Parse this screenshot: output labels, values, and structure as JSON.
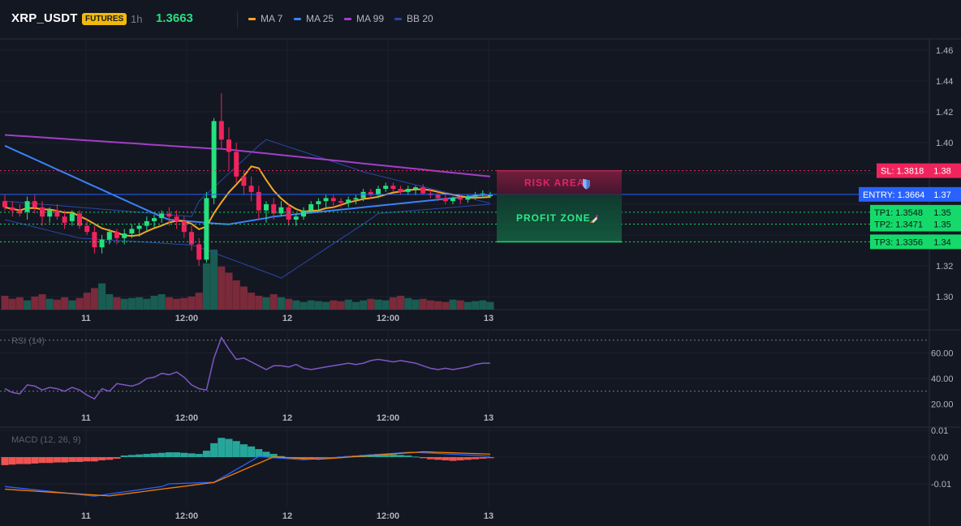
{
  "header": {
    "symbol": "XRP_USDT",
    "badge": "FUTURES",
    "timeframe": "1h",
    "last_price": "1.3663",
    "legend": [
      {
        "label": "MA 7",
        "color": "#f5a623"
      },
      {
        "label": "MA 25",
        "color": "#3b82f6"
      },
      {
        "label": "MA 99",
        "color": "#a23fc7"
      },
      {
        "label": "BB 20",
        "color": "#2947a9"
      }
    ]
  },
  "colors": {
    "background": "#131722",
    "grid": "#1e222d",
    "up": "#26e07f",
    "down": "#f0245c",
    "volume_up": "#1a5c52",
    "volume_down": "#7a2a3a",
    "entry": "#2962ff",
    "sl": "#f0245c",
    "tp": "#16d96b",
    "rsi": "#7e57c2",
    "macd": "#2962ff",
    "signal": "#f57c00",
    "hist_up": "#26a69a",
    "hist_down": "#ef5350"
  },
  "price_axis": {
    "ticks": [
      "1.46",
      "1.44",
      "1.42",
      "1.40",
      "1.38",
      "1.37",
      "1.35",
      "1.35",
      "1.34",
      "1.32",
      "1.30"
    ]
  },
  "time_axis": {
    "labels": [
      "11",
      "12:00",
      "12",
      "12:00",
      "13"
    ]
  },
  "levels": {
    "sl": {
      "label": "SL: 1.3818",
      "axis": "1.38",
      "value": 1.3818
    },
    "entry": {
      "label": "ENTRY: 1.3664",
      "axis": "1.37",
      "value": 1.3664
    },
    "tp1": {
      "label": "TP1: 1.3548",
      "axis": "1.35",
      "value": 1.3548
    },
    "tp2": {
      "label": "TP2: 1.3471",
      "axis": "1.35",
      "value": 1.3471
    },
    "tp3": {
      "label": "TP3: 1.3356",
      "axis": "1.34",
      "value": 1.3356
    }
  },
  "zones": {
    "risk": {
      "label": "RISK AREA",
      "icon": "shield-icon"
    },
    "profit": {
      "label": "PROFIT ZONE",
      "icon": "rocket-icon"
    }
  },
  "rsi": {
    "label": "RSI (14)",
    "ticks": [
      "60.00",
      "40.00",
      "20.00"
    ],
    "upper": 70,
    "lower": 30
  },
  "macd": {
    "label": "MACD (12, 26, 9)",
    "ticks": [
      "0.01",
      "0.00",
      "-0.01"
    ]
  }
}
